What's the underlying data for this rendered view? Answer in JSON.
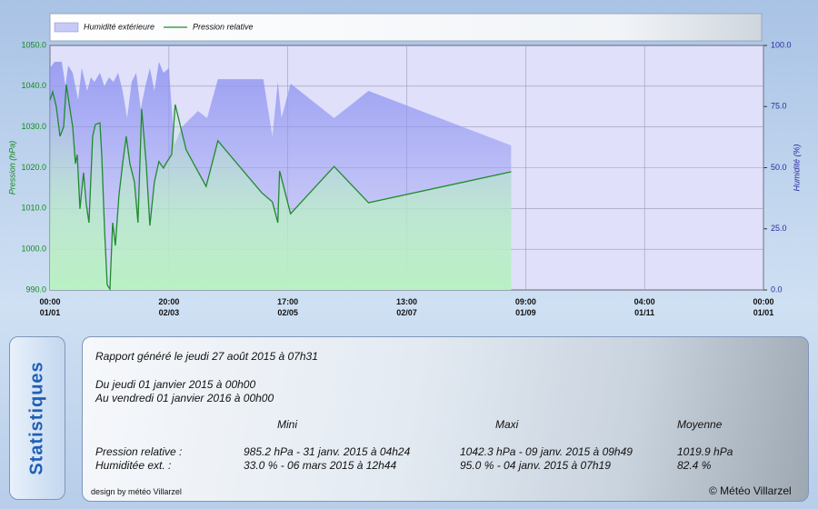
{
  "chart_data": {
    "type": "line",
    "legend": "top",
    "grid": true,
    "xlim": [
      0,
      6
    ],
    "xticks": [
      {
        "value": 0,
        "label": "00:00\n01/01"
      },
      {
        "value": 1,
        "label": "20:00\n02/03"
      },
      {
        "value": 2,
        "label": "17:00\n02/05"
      },
      {
        "value": 3,
        "label": "13:00\n02/07"
      },
      {
        "value": 4,
        "label": "09:00\n01/09"
      },
      {
        "value": 5,
        "label": "04:00\n01/11"
      },
      {
        "value": 6,
        "label": "00:00\n01/01"
      }
    ],
    "ylabel": "Pression (hPa)",
    "ylim": [
      990,
      1050
    ],
    "yticks": [
      {
        "value": 990,
        "label": "990.0"
      },
      {
        "value": 1000,
        "label": "1000.0"
      },
      {
        "value": 1010,
        "label": "1010.0"
      },
      {
        "value": 1020,
        "label": "1020.0"
      },
      {
        "value": 1030,
        "label": "1030.0"
      },
      {
        "value": 1040,
        "label": "1040.0"
      },
      {
        "value": 1050,
        "label": "1050.0"
      }
    ],
    "y2label": "Humidité (%)",
    "y2lim": [
      0,
      100
    ],
    "y2ticks": [
      {
        "value": 0,
        "label": "0.0"
      },
      {
        "value": 25,
        "label": "25.0"
      },
      {
        "value": 50,
        "label": "50.0"
      },
      {
        "value": 75,
        "label": "75.0"
      },
      {
        "value": 100,
        "label": "100.0"
      }
    ],
    "series": [
      {
        "name": "Humidité extérieure",
        "type": "area",
        "axis": "y2",
        "color": "#8f94f0",
        "x": [
          0,
          0.038,
          0.099,
          0.13,
          0.153,
          0.191,
          0.237,
          0.267,
          0.313,
          0.344,
          0.374,
          0.42,
          0.458,
          0.496,
          0.534,
          0.573,
          0.611,
          0.649,
          0.687,
          0.725,
          0.763,
          0.802,
          0.84,
          0.878,
          0.916,
          0.954,
          1,
          1.046,
          1.107,
          1.244,
          1.321,
          1.412,
          1.794,
          1.87,
          1.916,
          1.947,
          2.023,
          2.389,
          2.679,
          3.878
        ],
        "values": [
          90.7,
          93.3,
          93.3,
          83.3,
          91.8,
          88.8,
          77.7,
          90.7,
          81.4,
          87,
          85.1,
          88.8,
          83.3,
          87,
          85.1,
          88.8,
          81.4,
          70.3,
          85.1,
          88.8,
          74,
          83.3,
          90.7,
          81.4,
          93.3,
          88.8,
          90.7,
          59.1,
          66.5,
          73.2,
          70.3,
          86.2,
          86.2,
          62.8,
          85.1,
          70.3,
          84.4,
          70.3,
          81.4,
          59.1
        ]
      },
      {
        "name": "Pression relative",
        "type": "line",
        "color": "#1e8c2a",
        "x": [
          0,
          0.023,
          0.053,
          0.084,
          0.115,
          0.137,
          0.191,
          0.214,
          0.229,
          0.252,
          0.282,
          0.305,
          0.328,
          0.359,
          0.382,
          0.42,
          0.435,
          0.458,
          0.481,
          0.504,
          0.527,
          0.55,
          0.58,
          0.611,
          0.641,
          0.672,
          0.71,
          0.74,
          0.771,
          0.809,
          0.84,
          0.878,
          0.916,
          0.954,
          0.985,
          1.023,
          1.053,
          1.145,
          1.313,
          1.412,
          1.779,
          1.87,
          1.916,
          1.931,
          2.023,
          2.389,
          2.679,
          3.878
        ],
        "values": [
          1036.6,
          1038.6,
          1035,
          1027.7,
          1030,
          1040.4,
          1030,
          1021,
          1023.2,
          1009.9,
          1018.8,
          1011,
          1006.5,
          1027.7,
          1030.6,
          1031,
          1023.2,
          1005.4,
          991.3,
          990.2,
          1006.5,
          1000.9,
          1013.2,
          1021,
          1027.7,
          1021,
          1016.5,
          1006.5,
          1034.4,
          1021,
          1005.8,
          1016.5,
          1021.5,
          1019.9,
          1021.5,
          1023.2,
          1035.5,
          1024.4,
          1015.4,
          1026.6,
          1013.9,
          1011.6,
          1006.5,
          1019.2,
          1008.7,
          1020.3,
          1011.4,
          1019
        ]
      }
    ]
  },
  "stats": {
    "tab": "Statistiques",
    "report": "Rapport généré le jeudi 27 août 2015 à 07h31",
    "from": "Du jeudi 01 janvier 2015 à 00h00",
    "to": "Au vendredi 01 janvier 2016 à 00h00",
    "columns": [
      "Mini",
      "Maxi",
      "Moyenne"
    ],
    "rows": [
      {
        "label": "Pression relative :",
        "cells": [
          "985.2 hPa - 31 janv. 2015 à 04h24",
          "1042.3 hPa - 09 janv. 2015 à 09h49",
          "1019.9 hPa"
        ]
      },
      {
        "label": "Humiditée ext. :",
        "cells": [
          "33.0 % - 06 mars 2015 à 12h44",
          "95.0 % - 04 janv. 2015 à 07h19",
          "82.4 %"
        ]
      }
    ]
  },
  "footer": {
    "design": "design by météo Villarzel",
    "copyright": "© Météo Villarzel"
  }
}
